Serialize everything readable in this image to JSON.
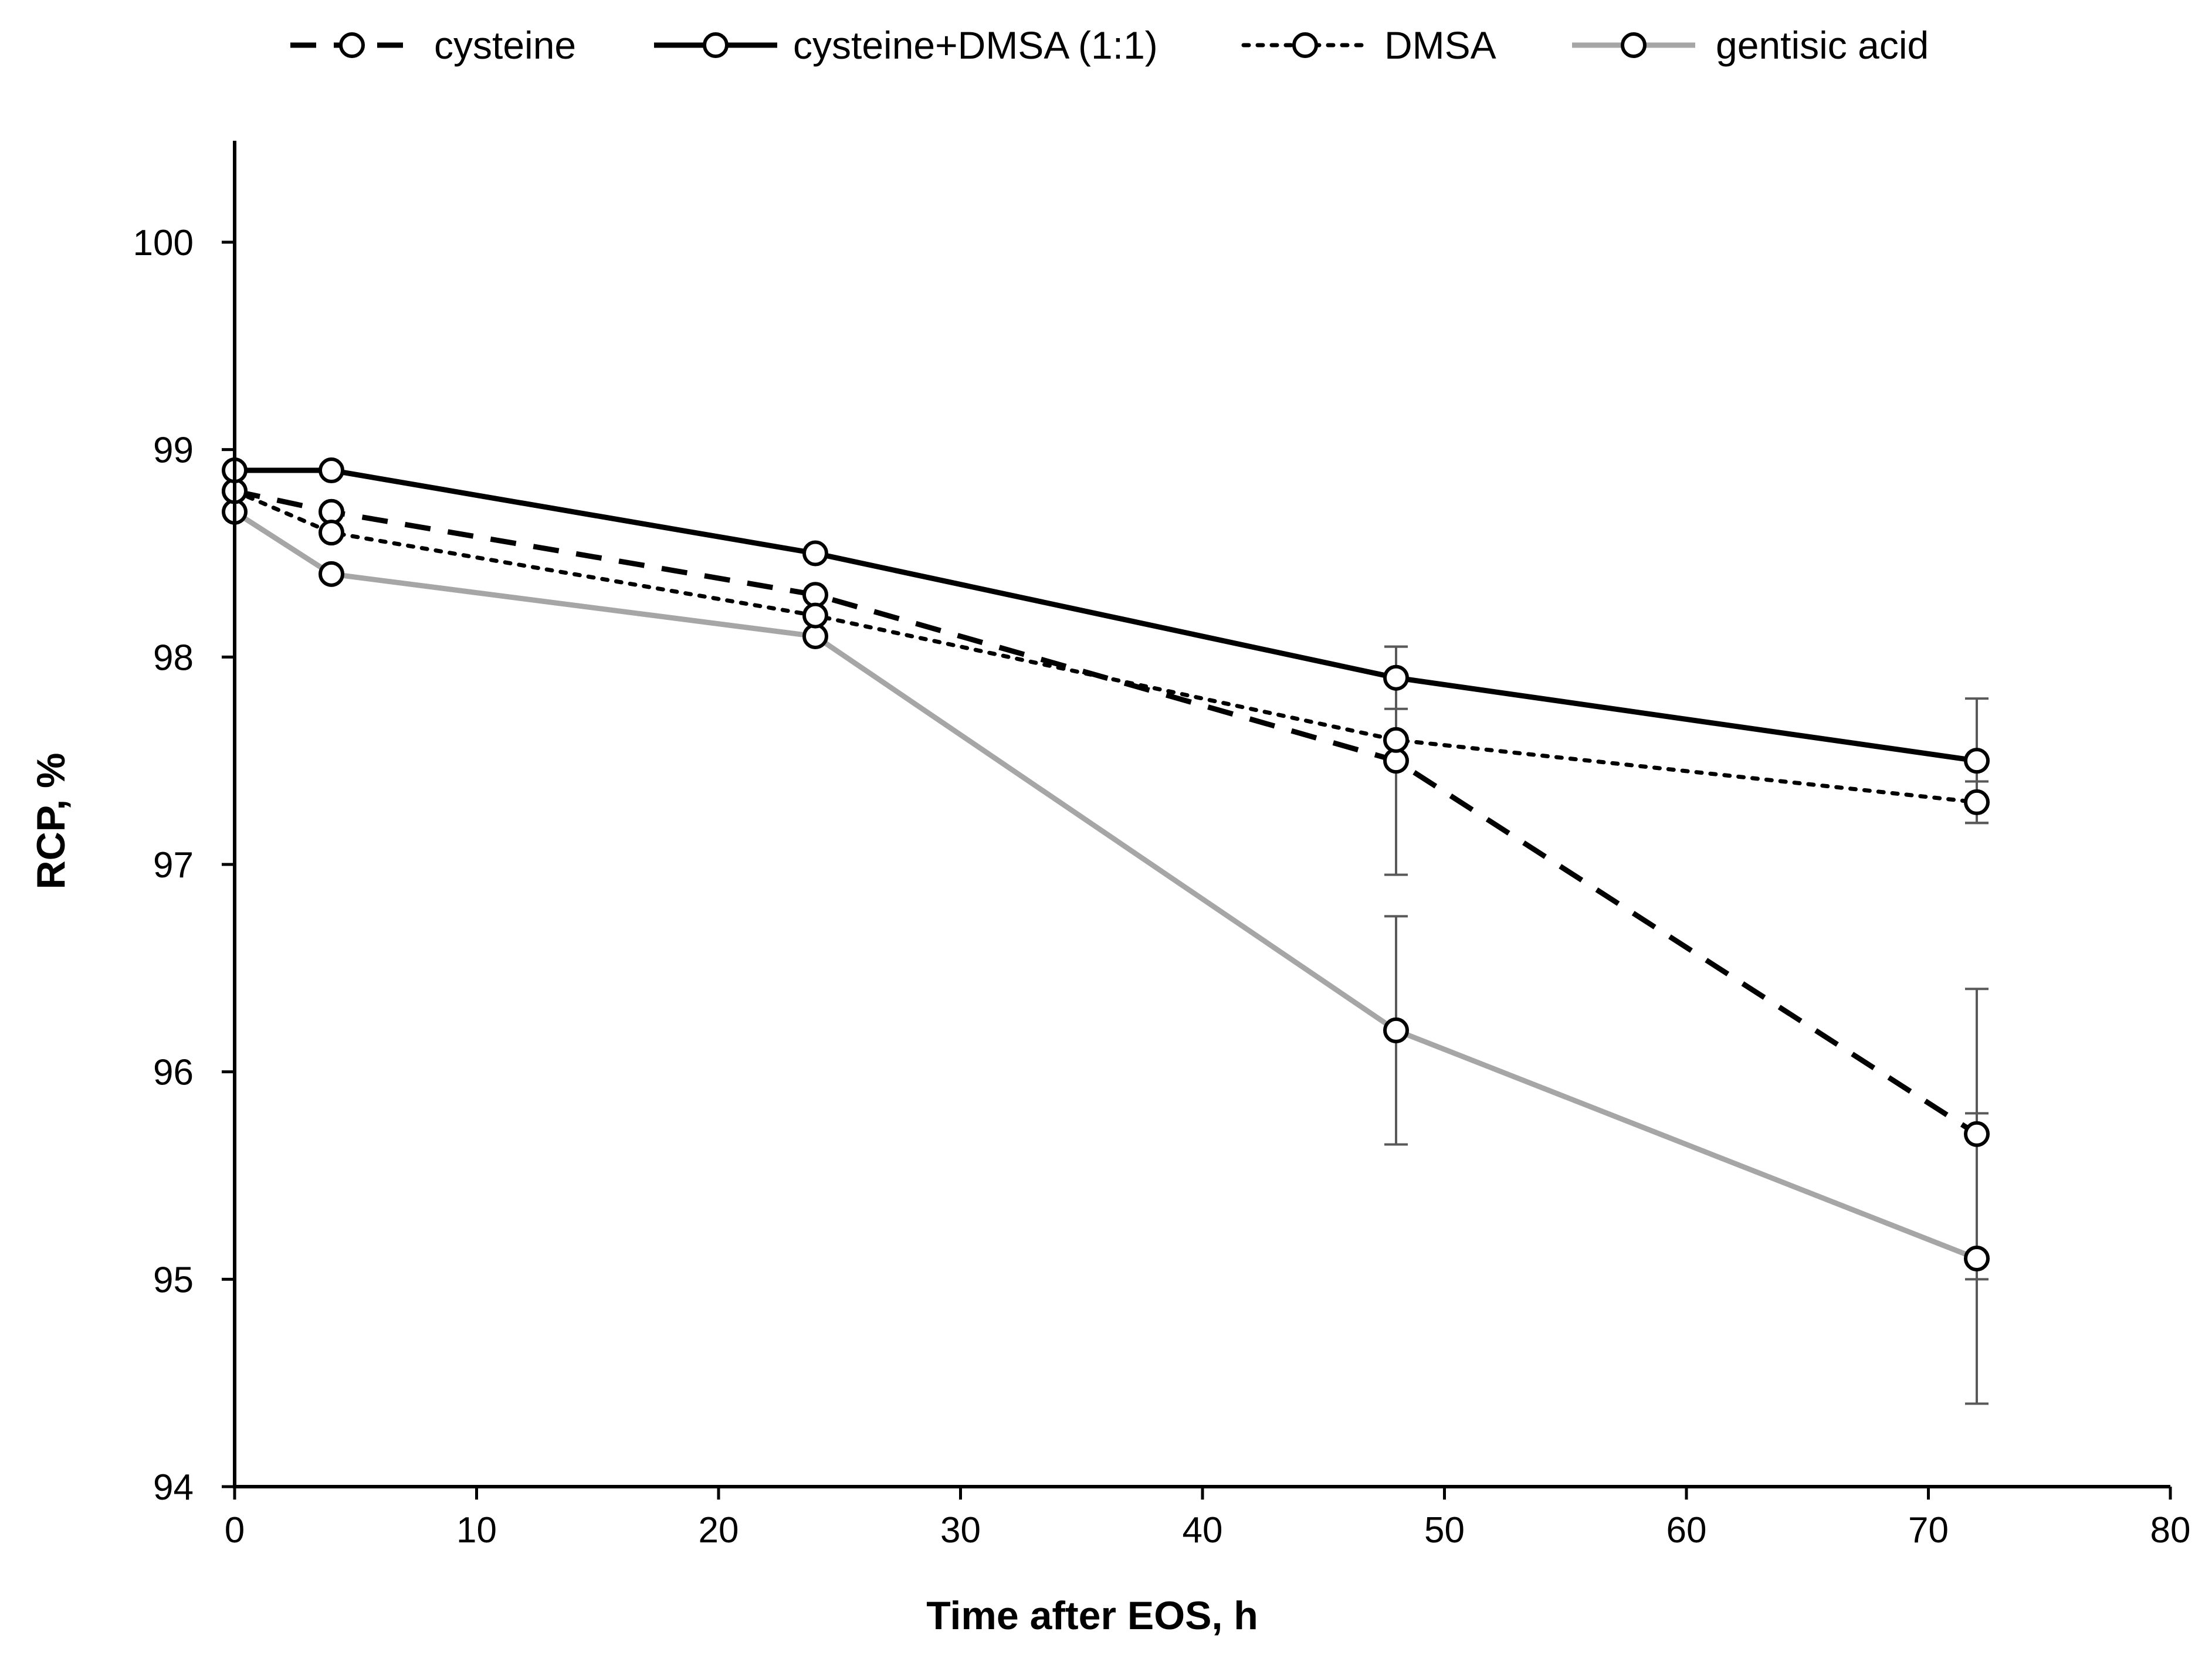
{
  "chart_data": {
    "type": "line",
    "title": "",
    "xlabel": "Time after EOS, h",
    "ylabel": "RCP, %",
    "xlim": [
      0,
      80
    ],
    "ylim": [
      94,
      100.5
    ],
    "xticks": [
      0,
      10,
      20,
      30,
      40,
      50,
      60,
      70,
      80
    ],
    "yticks": [
      94,
      95,
      96,
      97,
      98,
      99,
      100
    ],
    "grid": false,
    "legend_position": "top",
    "series": [
      {
        "name": "cysteine",
        "style": "dashed",
        "color": "#000000",
        "x": [
          0,
          4,
          24,
          48,
          72
        ],
        "y": [
          98.8,
          98.7,
          98.3,
          97.5,
          95.7
        ],
        "error": [
          null,
          null,
          null,
          0.55,
          0.7
        ]
      },
      {
        "name": "cysteine+DMSA (1:1)",
        "style": "solid",
        "color": "#000000",
        "x": [
          0,
          4,
          24,
          48,
          72
        ],
        "y": [
          98.9,
          98.9,
          98.5,
          97.9,
          97.5
        ],
        "error": [
          null,
          null,
          null,
          0.15,
          0.3
        ]
      },
      {
        "name": "DMSA",
        "style": "dotted",
        "color": "#000000",
        "x": [
          0,
          4,
          24,
          48,
          72
        ],
        "y": [
          98.8,
          98.6,
          98.2,
          97.6,
          97.3
        ],
        "error": [
          null,
          null,
          null,
          null,
          0.1
        ]
      },
      {
        "name": "gentisic acid",
        "style": "solid",
        "color": "#a6a6a6",
        "x": [
          0,
          4,
          24,
          48,
          72
        ],
        "y": [
          98.7,
          98.4,
          98.1,
          96.2,
          95.1
        ],
        "error": [
          null,
          null,
          null,
          0.55,
          0.7
        ]
      }
    ]
  }
}
